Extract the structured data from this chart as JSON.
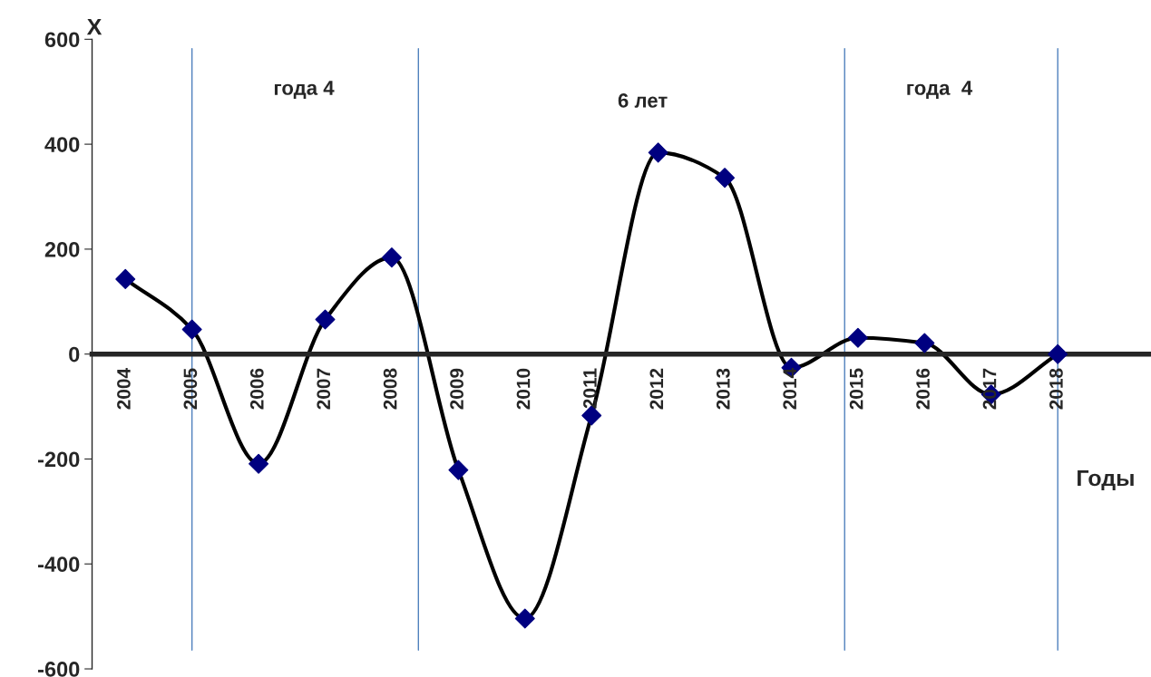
{
  "chart_data": {
    "type": "line",
    "xlabel": "Годы",
    "ylabel": "X",
    "x": [
      2004,
      2005,
      2006,
      2007,
      2008,
      2009,
      2010,
      2011,
      2012,
      2013,
      2014,
      2015,
      2016,
      2017,
      2018
    ],
    "series": [
      {
        "color": "#000000",
        "colors": [
          "#000080",
          "#000080",
          "#000080",
          "#000080",
          "#000080",
          "#000080",
          "#000080",
          "#000080",
          "#000080",
          "#000080",
          "#000080",
          "#000080",
          "#000080",
          "#000080",
          "#000080"
        ],
        "values": [
          143,
          47,
          -209,
          66,
          184,
          -221,
          -504,
          -117,
          384,
          336,
          -26,
          31,
          21,
          -77,
          0
        ]
      }
    ],
    "marker": "diamond",
    "line_style": "solid",
    "grid": false,
    "legend": false,
    "xlim": [
      2003.5,
      2019.4
    ],
    "xticks": [
      2004,
      2005,
      2006,
      2007,
      2008,
      2009,
      2010,
      2011,
      2012,
      2013,
      2014,
      2015,
      2016,
      2017,
      2018
    ],
    "ylim": [
      -600,
      600
    ],
    "yticks": [
      -600,
      -400,
      -200,
      0,
      200,
      400,
      600
    ],
    "ref_lines": [
      {
        "axis": "x",
        "value": 2005,
        "color": "#4f81bd"
      },
      {
        "axis": "x",
        "value": 2008.4,
        "color": "#4f81bd"
      },
      {
        "axis": "x",
        "value": 2014.8,
        "color": "#4f81bd"
      },
      {
        "axis": "x",
        "value": 2018,
        "color": "#4f81bd"
      }
    ],
    "annotations": [
      "года 4",
      "6 лет",
      "года  4"
    ]
  }
}
